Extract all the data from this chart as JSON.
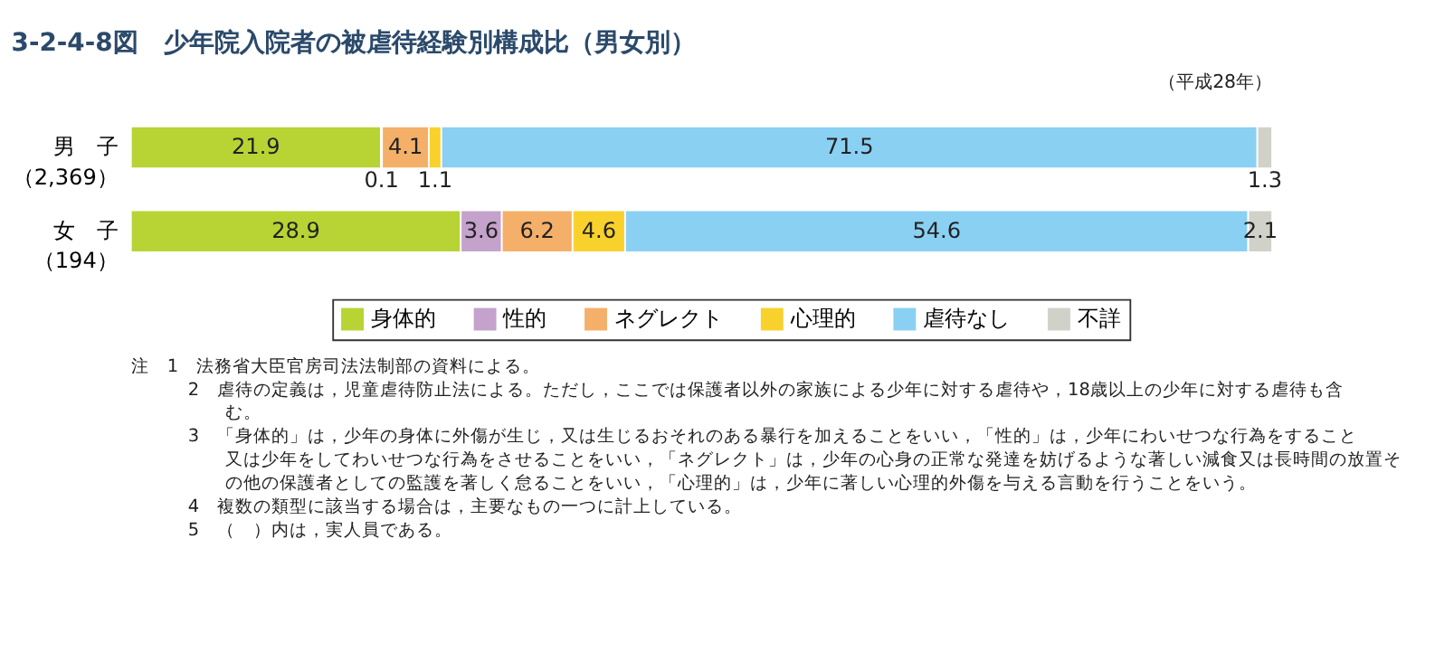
{
  "chart_data": {
    "type": "bar",
    "title": "3-2-4-8図　少年院入院者の被虐待経験別構成比（男女別）",
    "orientation": "horizontal",
    "stacked": true,
    "data_labels": true,
    "legend": "bottom",
    "tick_labels": "y",
    "xlim": [
      0,
      100
    ],
    "categories": [
      "男　子（2,369）",
      "女　子（194）"
    ],
    "series": [
      {
        "name": "身体的",
        "color": "#b7d334",
        "values": [
          21.9,
          28.9
        ]
      },
      {
        "name": "性的",
        "color": "#c4a2cc",
        "values": [
          0.1,
          3.6
        ]
      },
      {
        "name": "ネグレクト",
        "color": "#f4b069",
        "values": [
          4.1,
          6.2
        ]
      },
      {
        "name": "心理的",
        "color": "#f9d12c",
        "values": [
          1.1,
          4.6
        ]
      },
      {
        "name": "虐待なし",
        "color": "#8ad0f3",
        "values": [
          71.5,
          54.6
        ]
      },
      {
        "name": "不詳",
        "color": "#d0d2c9",
        "values": [
          1.3,
          2.1
        ]
      }
    ],
    "annotations": [
      "（平成28年）",
      "注　1　法務省大臣官房司法法制部の資料による。",
      "2　虐待の定義は，児童虐待防止法による。ただし，ここでは保護者以外の家族による少年に対する虐待や，18歳以上の少年に対する虐待も含む。",
      "3　「身体的」は，少年の身体に外傷が生じ，又は生じるおそれのある暴行を加えることをいい，「性的」は，少年にわいせつな行為をすること又は少年をしてわいせつな行為をさせることをいい，「ネグレクト」は，少年の心身の正常な発達を妨げるような著しい減食又は長時間の放置その他の保護者としての監護を著しく怠ることをいい，「心理的」は，少年に著しい心理的外傷を与える言動を行うことをいう。",
      "4　複数の類型に該当する場合は，主要なもの一つに計上している。",
      "5　（　）内は，実人員である。"
    ]
  }
}
